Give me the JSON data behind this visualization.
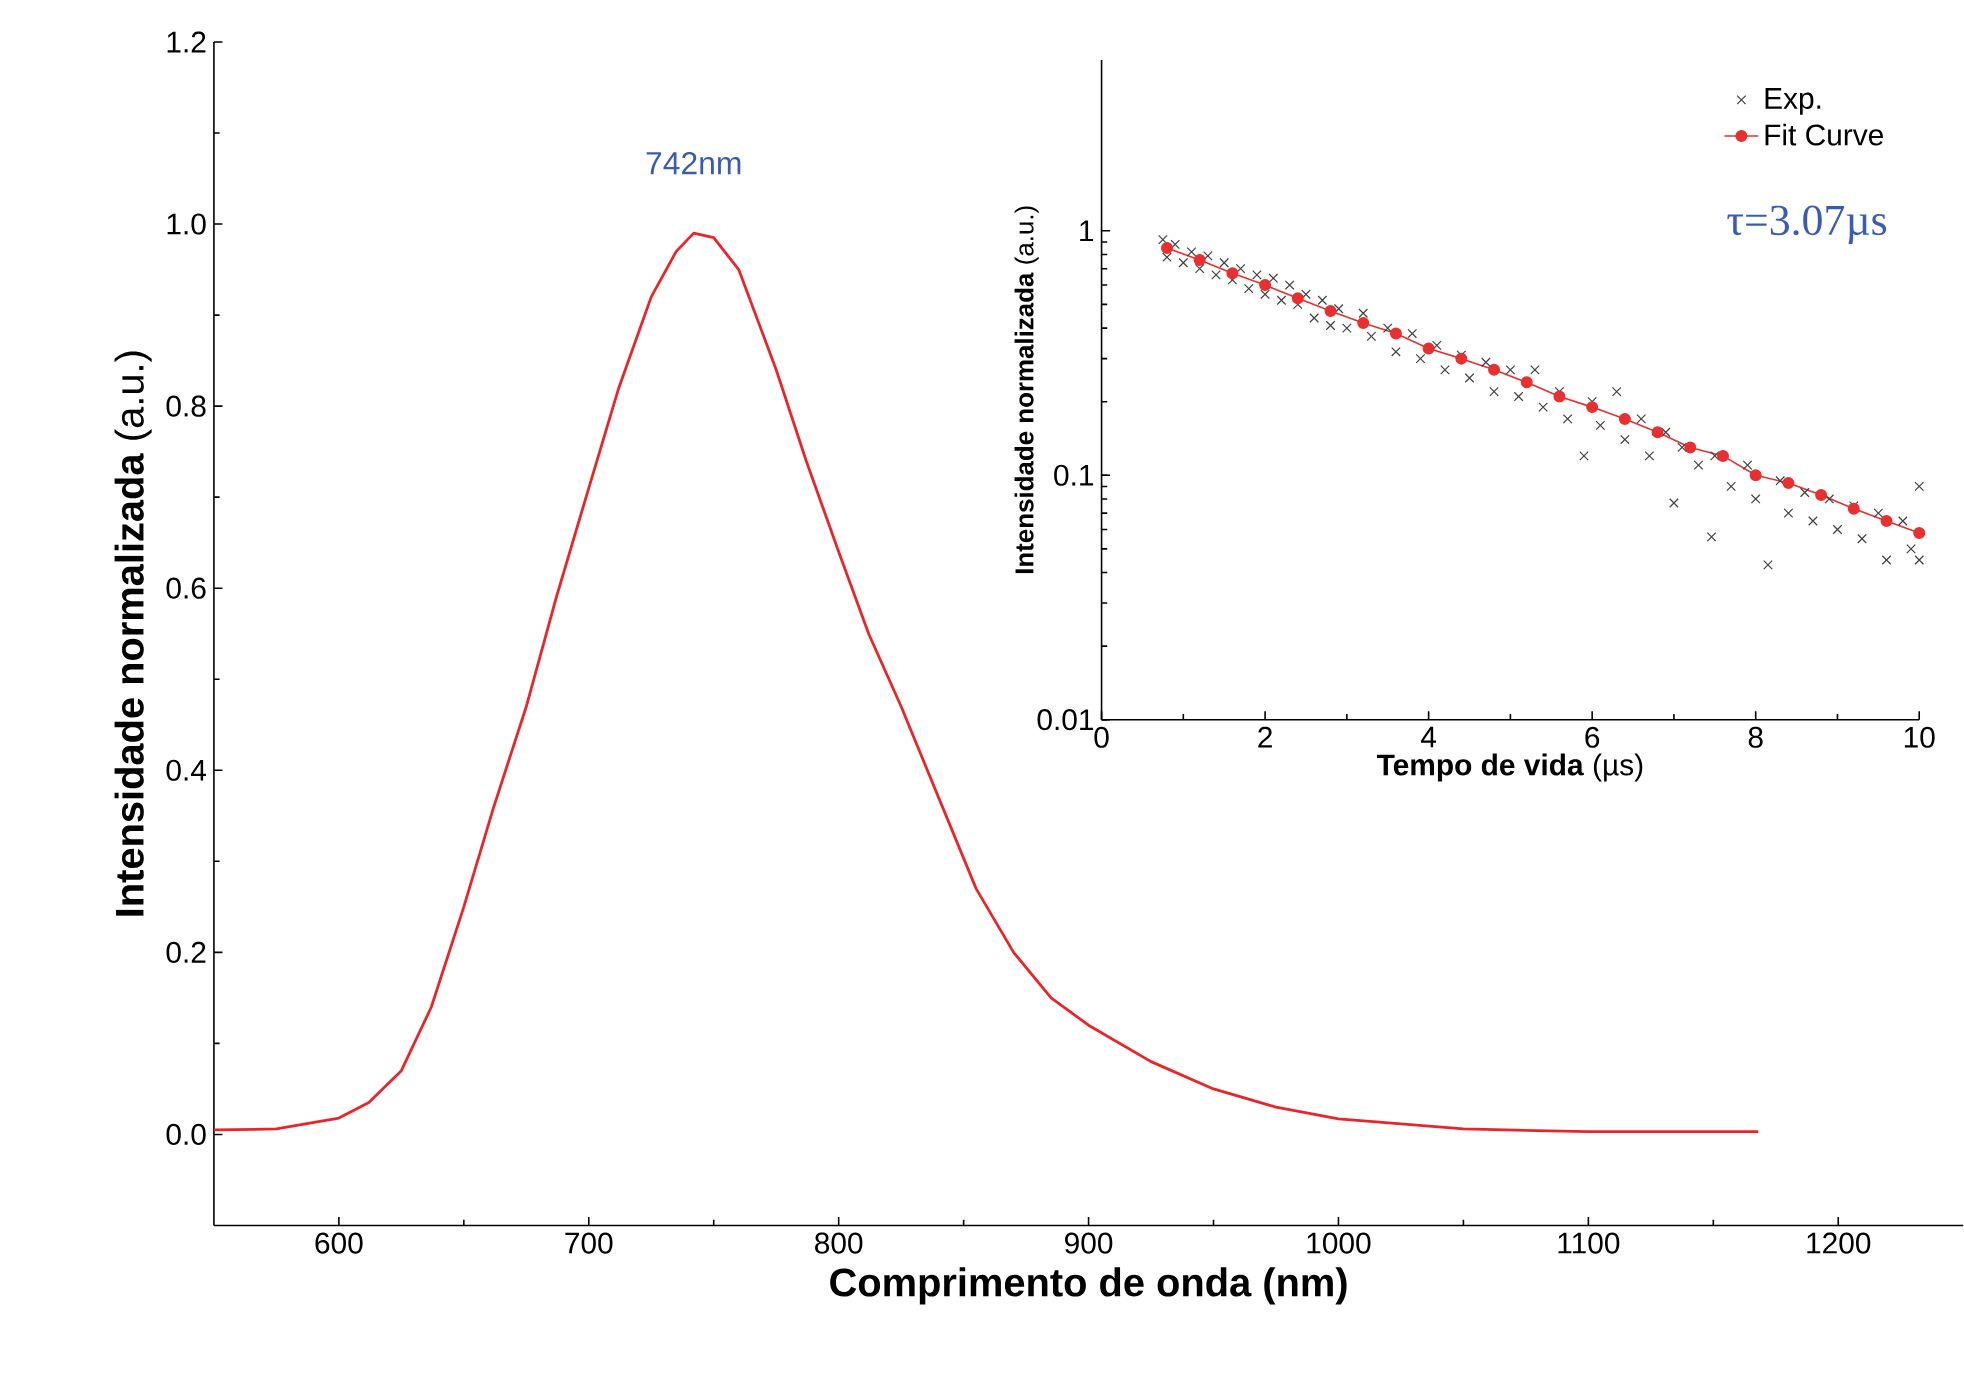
{
  "chart_data": [
    {
      "type": "line",
      "xlabel": "Comprimento de onda (nm)",
      "ylabel": "**Intensidade normalizada**   (a.u.)",
      "xlim": [
        550,
        1250
      ],
      "ylim": [
        -0.1,
        1.2
      ],
      "xticks": [
        600,
        700,
        800,
        900,
        1000,
        1100,
        1200
      ],
      "yticks": [
        {
          "value": 0,
          "label": "0.0"
        },
        0.2,
        0.4,
        0.6,
        0.8,
        {
          "value": 1,
          "label": "1.0"
        },
        1.2
      ],
      "annotations": [
        {
          "text": "742nm",
          "x": 742,
          "y": 0.99
        }
      ],
      "series": [
        {
          "color": "#e8262a",
          "x": [
            550,
            575,
            600,
            612,
            625,
            637,
            650,
            662,
            675,
            687,
            700,
            712,
            725,
            735,
            742,
            750,
            760,
            775,
            787,
            800,
            812,
            825,
            840,
            855,
            870,
            885,
            900,
            925,
            950,
            975,
            1000,
            1050,
            1100,
            1168
          ],
          "values": [
            0.005,
            0.006,
            0.018,
            0.035,
            0.07,
            0.14,
            0.25,
            0.36,
            0.47,
            0.59,
            0.71,
            0.82,
            0.92,
            0.97,
            0.99,
            0.985,
            0.95,
            0.84,
            0.74,
            0.64,
            0.55,
            0.47,
            0.37,
            0.27,
            0.2,
            0.15,
            0.12,
            0.08,
            0.05,
            0.03,
            0.017,
            0.006,
            0.003,
            0.003
          ]
        }
      ]
    },
    {
      "type": "scatter",
      "xlabel": "**Tempo de vida**  (µs)",
      "ylabel": "**Intensidade normalizada** (a.u.)",
      "xlim": [
        0,
        10
      ],
      "ylim": [
        0.01,
        5
      ],
      "xticks": [
        0,
        2,
        4,
        6,
        8,
        10
      ],
      "yticks": [
        0.01,
        0.1,
        1
      ],
      "log": "y",
      "legend": "top right",
      "annotations": [
        "τ=3.07µs"
      ],
      "series": [
        {
          "name": "Exp.",
          "type": "scatter",
          "marker": "cross",
          "color": "#404040",
          "x": [
            0.75,
            0.8,
            0.9,
            1.0,
            1.1,
            1.2,
            1.3,
            1.4,
            1.5,
            1.6,
            1.7,
            1.8,
            1.9,
            2.0,
            2.1,
            2.2,
            2.3,
            2.4,
            2.5,
            2.6,
            2.7,
            2.8,
            2.9,
            3.0,
            3.2,
            3.3,
            3.5,
            3.6,
            3.8,
            3.9,
            4.1,
            4.2,
            4.4,
            4.5,
            4.7,
            4.8,
            5.0,
            5.1,
            5.3,
            5.4,
            5.6,
            5.7,
            5.9,
            6.0,
            6.1,
            6.3,
            6.4,
            6.6,
            6.7,
            6.9,
            7.0,
            7.1,
            7.3,
            7.46,
            7.5,
            7.7,
            7.9,
            8.0,
            8.15,
            8.3,
            8.4,
            8.6,
            8.7,
            8.9,
            9.0,
            9.2,
            9.3,
            9.5,
            9.6,
            9.8,
            9.9,
            10.0,
            10.0
          ],
          "values": [
            0.92,
            0.78,
            0.88,
            0.74,
            0.82,
            0.7,
            0.79,
            0.66,
            0.74,
            0.63,
            0.7,
            0.58,
            0.66,
            0.55,
            0.64,
            0.52,
            0.6,
            0.5,
            0.55,
            0.44,
            0.52,
            0.41,
            0.48,
            0.4,
            0.46,
            0.37,
            0.4,
            0.32,
            0.38,
            0.3,
            0.34,
            0.27,
            0.31,
            0.25,
            0.29,
            0.22,
            0.27,
            0.21,
            0.27,
            0.19,
            0.22,
            0.17,
            0.12,
            0.2,
            0.16,
            0.22,
            0.14,
            0.17,
            0.12,
            0.15,
            0.077,
            0.13,
            0.11,
            0.056,
            0.12,
            0.09,
            0.11,
            0.08,
            0.043,
            0.095,
            0.07,
            0.085,
            0.065,
            0.08,
            0.06,
            0.075,
            0.055,
            0.07,
            0.045,
            0.065,
            0.05,
            0.09,
            0.045
          ]
        },
        {
          "name": "Fit Curve",
          "type": "line",
          "marker": "circle",
          "color": "#e83030",
          "x": [
            0.8,
            1.2,
            1.6,
            2.0,
            2.4,
            2.8,
            3.2,
            3.6,
            4.0,
            4.4,
            4.8,
            5.2,
            5.6,
            6.0,
            6.4,
            6.8,
            7.2,
            7.6,
            8.0,
            8.4,
            8.8,
            9.2,
            9.6,
            10.0
          ],
          "values": [
            0.85,
            0.76,
            0.67,
            0.6,
            0.53,
            0.47,
            0.42,
            0.38,
            0.33,
            0.3,
            0.27,
            0.24,
            0.21,
            0.19,
            0.17,
            0.15,
            0.13,
            0.12,
            0.1,
            0.093,
            0.083,
            0.073,
            0.065,
            0.058
          ]
        }
      ]
    }
  ]
}
